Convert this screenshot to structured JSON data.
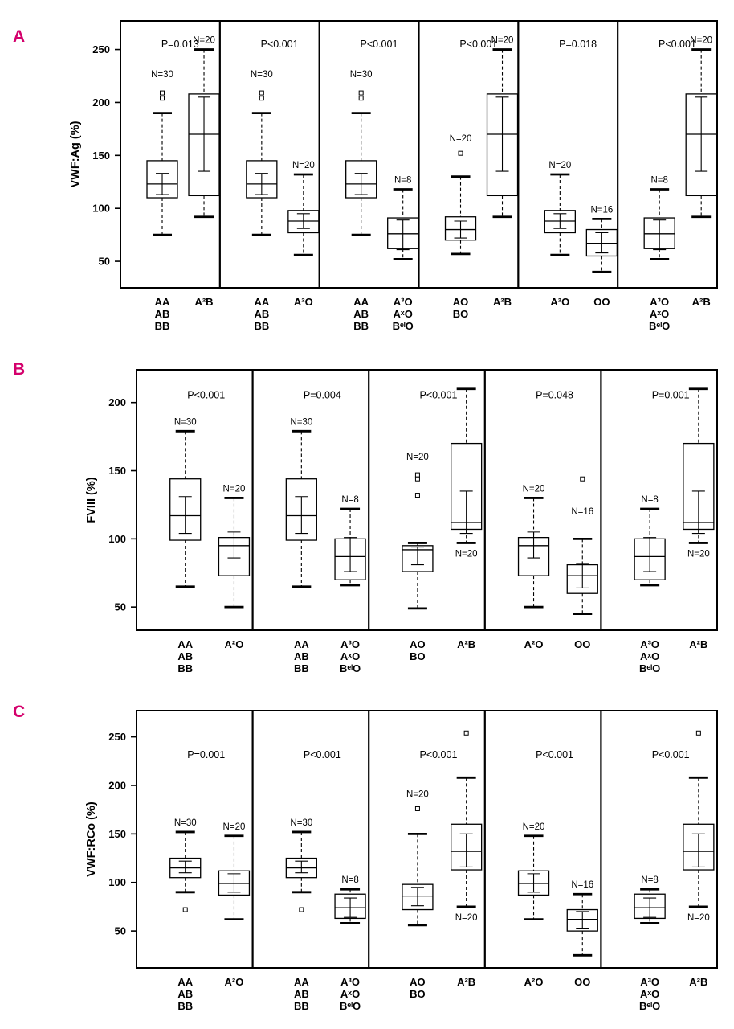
{
  "accent_color": "#d4006c",
  "chart_data": [
    {
      "type": "boxplot",
      "panel_label": "A",
      "ylabel": "VWF:Ag (%)",
      "yticks": [
        50,
        100,
        150,
        200,
        250
      ],
      "ydomain": [
        25,
        277
      ],
      "p_y": 252,
      "panes": [
        {
          "p": "P=0.013",
          "boxes": [
            {
              "labels": [
                "AA",
                "AB",
                "BB"
              ],
              "n": "N=30",
              "n_y": 224,
              "lo": 75,
              "q1": 110,
              "med": 123,
              "q3": 145,
              "hi": 190,
              "ci": [
                113,
                133
              ],
              "outliers": [
                204,
                209
              ]
            },
            {
              "labels": [
                "A²B"
              ],
              "n": "N=20",
              "lo": 92,
              "q1": 112,
              "med": 170,
              "q3": 208,
              "hi": 250,
              "ci": [
                135,
                205
              ],
              "outliers": []
            }
          ]
        },
        {
          "p": "P<0.001",
          "boxes": [
            {
              "labels": [
                "AA",
                "AB",
                "BB"
              ],
              "n": "N=30",
              "n_y": 224,
              "lo": 75,
              "q1": 110,
              "med": 123,
              "q3": 145,
              "hi": 190,
              "ci": [
                113,
                133
              ],
              "outliers": [
                204,
                209
              ]
            },
            {
              "labels": [
                "A²O"
              ],
              "n": "N=20",
              "lo": 56,
              "q1": 77,
              "med": 88,
              "q3": 98,
              "hi": 132,
              "ci": [
                81,
                95
              ],
              "outliers": []
            }
          ]
        },
        {
          "p": "P<0.001",
          "boxes": [
            {
              "labels": [
                "AA",
                "AB",
                "BB"
              ],
              "n": "N=30",
              "n_y": 224,
              "lo": 75,
              "q1": 110,
              "med": 123,
              "q3": 145,
              "hi": 190,
              "ci": [
                113,
                133
              ],
              "outliers": [
                204,
                209
              ]
            },
            {
              "labels": [
                "A³O",
                "AˣO",
                "BᵉˡO"
              ],
              "n": "N=8",
              "lo": 52,
              "q1": 62,
              "med": 76,
              "q3": 91,
              "hi": 118,
              "ci": [
                61,
                89
              ],
              "outliers": []
            }
          ]
        },
        {
          "p": "P<0.001",
          "boxes": [
            {
              "labels": [
                "AO",
                "BO"
              ],
              "n": "N=20",
              "n_y": 163,
              "lo": 57,
              "q1": 70,
              "med": 80,
              "q3": 92,
              "hi": 130,
              "ci": [
                72,
                88
              ],
              "outliers": [
                152
              ]
            },
            {
              "labels": [
                "A²B"
              ],
              "n": "N=20",
              "lo": 92,
              "q1": 112,
              "med": 170,
              "q3": 208,
              "hi": 250,
              "ci": [
                135,
                205
              ],
              "outliers": []
            }
          ]
        },
        {
          "p": "P=0.018",
          "boxes": [
            {
              "labels": [
                "A²O"
              ],
              "n": "N=20",
              "lo": 56,
              "q1": 77,
              "med": 88,
              "q3": 98,
              "hi": 132,
              "ci": [
                81,
                95
              ],
              "outliers": []
            },
            {
              "labels": [
                "OO"
              ],
              "n": "N=16",
              "lo": 40,
              "q1": 55,
              "med": 67,
              "q3": 80,
              "hi": 90,
              "ci": [
                58,
                77
              ],
              "outliers": []
            }
          ]
        },
        {
          "p": "P<0.001",
          "boxes": [
            {
              "labels": [
                "A³O",
                "AˣO",
                "BᵉˡO"
              ],
              "n": "N=8",
              "lo": 52,
              "q1": 62,
              "med": 76,
              "q3": 91,
              "hi": 118,
              "ci": [
                61,
                89
              ],
              "outliers": []
            },
            {
              "labels": [
                "A²B"
              ],
              "n": "N=20",
              "lo": 92,
              "q1": 112,
              "med": 170,
              "q3": 208,
              "hi": 250,
              "ci": [
                135,
                205
              ],
              "outliers": []
            }
          ]
        }
      ]
    },
    {
      "type": "boxplot",
      "panel_label": "B",
      "ylabel": "FVIII (%)",
      "yticks": [
        50,
        100,
        150,
        200
      ],
      "ydomain": [
        33,
        224
      ],
      "p_y": 203,
      "panes": [
        {
          "p": "P<0.001",
          "boxes": [
            {
              "labels": [
                "AA",
                "AB",
                "BB"
              ],
              "n": "N=30",
              "lo": 65,
              "q1": 99,
              "med": 117,
              "q3": 144,
              "hi": 179,
              "ci": [
                104,
                131
              ],
              "outliers": []
            },
            {
              "labels": [
                "A²O"
              ],
              "n": "N=20",
              "lo": 50,
              "q1": 73,
              "med": 95,
              "q3": 101,
              "hi": 130,
              "ci": [
                86,
                105
              ],
              "outliers": []
            }
          ]
        },
        {
          "p": "P=0.004",
          "boxes": [
            {
              "labels": [
                "AA",
                "AB",
                "BB"
              ],
              "n": "N=30",
              "lo": 65,
              "q1": 99,
              "med": 117,
              "q3": 144,
              "hi": 179,
              "ci": [
                104,
                131
              ],
              "outliers": []
            },
            {
              "labels": [
                "A³O",
                "AˣO",
                "BᵉˡO"
              ],
              "n": "N=8",
              "lo": 66,
              "q1": 70,
              "med": 87,
              "q3": 100,
              "hi": 122,
              "ci": [
                76,
                101
              ],
              "outliers": []
            }
          ]
        },
        {
          "p": "P<0.001",
          "boxes": [
            {
              "labels": [
                "AO",
                "BO"
              ],
              "n": "N=20",
              "n_y": 158,
              "lo": 49,
              "q1": 76,
              "med": 92,
              "q3": 95,
              "hi": 97,
              "ci": [
                81,
                94
              ],
              "outliers": [
                132,
                144,
                147
              ]
            },
            {
              "labels": [
                "A²B"
              ],
              "n": "N=20",
              "n_pos": "below",
              "lo": 97,
              "q1": 107,
              "med": 112,
              "q3": 170,
              "hi": 210,
              "ci": [
                104,
                135
              ],
              "outliers": []
            }
          ]
        },
        {
          "p": "P=0.048",
          "boxes": [
            {
              "labels": [
                "A²O"
              ],
              "n": "N=20",
              "lo": 50,
              "q1": 73,
              "med": 95,
              "q3": 101,
              "hi": 130,
              "ci": [
                86,
                105
              ],
              "outliers": []
            },
            {
              "labels": [
                "OO"
              ],
              "n": "N=16",
              "n_y": 118,
              "lo": 45,
              "q1": 60,
              "med": 73,
              "q3": 81,
              "hi": 100,
              "ci": [
                64,
                82
              ],
              "outliers": [
                144
              ]
            }
          ]
        },
        {
          "p": "P=0.001",
          "boxes": [
            {
              "labels": [
                "A³O",
                "AˣO",
                "BᵉˡO"
              ],
              "n": "N=8",
              "lo": 66,
              "q1": 70,
              "med": 87,
              "q3": 100,
              "hi": 122,
              "ci": [
                76,
                101
              ],
              "outliers": []
            },
            {
              "labels": [
                "A²B"
              ],
              "n": "N=20",
              "n_pos": "below",
              "lo": 97,
              "q1": 107,
              "med": 112,
              "q3": 170,
              "hi": 210,
              "ci": [
                104,
                135
              ],
              "outliers": []
            }
          ]
        }
      ]
    },
    {
      "type": "boxplot",
      "panel_label": "C",
      "ylabel": "VWF:RCo (%)",
      "yticks": [
        50,
        100,
        150,
        200,
        250
      ],
      "ydomain": [
        12,
        277
      ],
      "p_y": 228,
      "panes": [
        {
          "p": "P=0.001",
          "boxes": [
            {
              "labels": [
                "AA",
                "AB",
                "BB"
              ],
              "n": "N=30",
              "lo": 90,
              "q1": 105,
              "med": 115,
              "q3": 125,
              "hi": 152,
              "ci": [
                110,
                122
              ],
              "outliers": [
                72
              ]
            },
            {
              "labels": [
                "A²O"
              ],
              "n": "N=20",
              "lo": 62,
              "q1": 87,
              "med": 99,
              "q3": 112,
              "hi": 148,
              "ci": [
                90,
                109
              ],
              "outliers": []
            }
          ]
        },
        {
          "p": "P<0.001",
          "boxes": [
            {
              "labels": [
                "AA",
                "AB",
                "BB"
              ],
              "n": "N=30",
              "lo": 90,
              "q1": 105,
              "med": 115,
              "q3": 125,
              "hi": 152,
              "ci": [
                110,
                122
              ],
              "outliers": [
                72
              ]
            },
            {
              "labels": [
                "A³O",
                "AˣO",
                "BᵉˡO"
              ],
              "n": "N=8",
              "lo": 58,
              "q1": 63,
              "med": 74,
              "q3": 88,
              "hi": 93,
              "ci": [
                64,
                84
              ],
              "outliers": []
            }
          ]
        },
        {
          "p": "P<0.001",
          "boxes": [
            {
              "labels": [
                "AO",
                "BO"
              ],
              "n": "N=20",
              "n_y": 188,
              "lo": 56,
              "q1": 72,
              "med": 86,
              "q3": 98,
              "hi": 150,
              "ci": [
                76,
                95
              ],
              "outliers": [
                176
              ]
            },
            {
              "labels": [
                "A²B"
              ],
              "n": "N=20",
              "n_pos": "below",
              "lo": 75,
              "q1": 113,
              "med": 132,
              "q3": 160,
              "hi": 208,
              "ci": [
                116,
                150
              ],
              "outliers": [
                254
              ]
            }
          ]
        },
        {
          "p": "P<0.001",
          "boxes": [
            {
              "labels": [
                "A²O"
              ],
              "n": "N=20",
              "lo": 62,
              "q1": 87,
              "med": 99,
              "q3": 112,
              "hi": 148,
              "ci": [
                90,
                109
              ],
              "outliers": []
            },
            {
              "labels": [
                "OO"
              ],
              "n": "N=16",
              "lo": 25,
              "q1": 50,
              "med": 62,
              "q3": 72,
              "hi": 88,
              "ci": [
                53,
                70
              ],
              "outliers": []
            }
          ]
        },
        {
          "p": "P<0.001",
          "boxes": [
            {
              "labels": [
                "A³O",
                "AˣO",
                "BᵉˡO"
              ],
              "n": "N=8",
              "lo": 58,
              "q1": 63,
              "med": 74,
              "q3": 88,
              "hi": 93,
              "ci": [
                64,
                84
              ],
              "outliers": []
            },
            {
              "labels": [
                "A²B"
              ],
              "n": "N=20",
              "n_pos": "below",
              "lo": 75,
              "q1": 113,
              "med": 132,
              "q3": 160,
              "hi": 208,
              "ci": [
                116,
                150
              ],
              "outliers": [
                254
              ]
            }
          ]
        }
      ]
    }
  ]
}
